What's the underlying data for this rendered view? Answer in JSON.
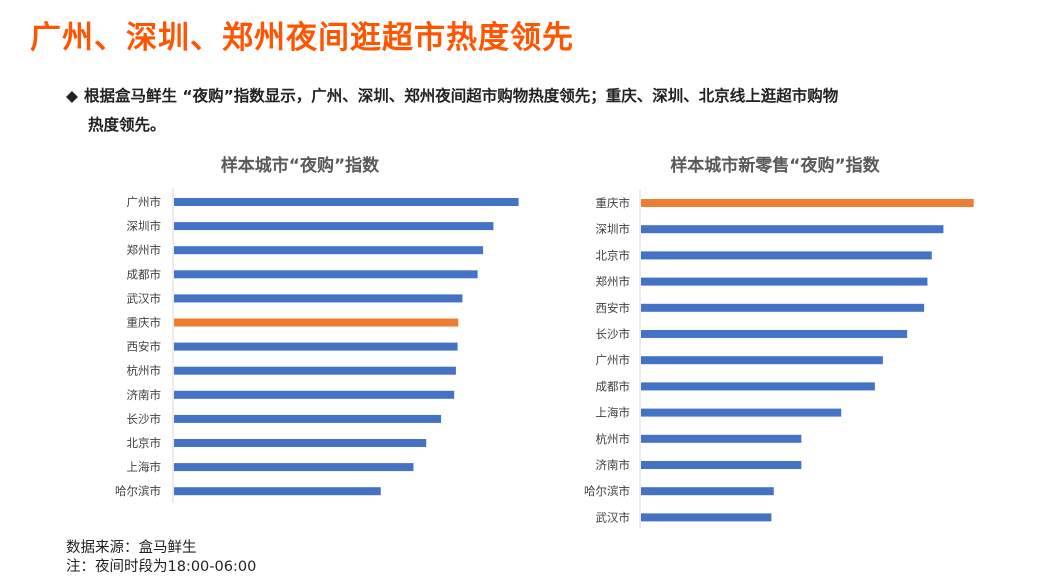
{
  "title": "广州、深圳、郑州夜间逛超市热度领先",
  "bullet": {
    "icon": "diamond-bullet-icon",
    "line1": "根据盒马鲜生 “夜购”指数显示，广州、深圳、郑州夜间超市购物热度领先；重庆、深圳、北京线上逛超市购物",
    "line2": "热度领先。"
  },
  "footer": {
    "source": "数据来源：盒马鲜生",
    "note": "注：夜间时段为18:00-06:00"
  },
  "colors": {
    "title": "#ff5500",
    "bar": "#4472c4",
    "highlight": "#ed7d31"
  },
  "chart_data": [
    {
      "type": "bar",
      "orientation": "horizontal",
      "title": "样本城市“夜购”指数",
      "categories": [
        "广州市",
        "深圳市",
        "郑州市",
        "成都市",
        "武汉市",
        "重庆市",
        "西安市",
        "杭州市",
        "济南市",
        "长沙市",
        "北京市",
        "上海市",
        "哈尔滨市"
      ],
      "values": [
        100,
        92.7,
        89.7,
        88.1,
        83.7,
        82.5,
        82.3,
        81.8,
        81.3,
        77.5,
        73.2,
        69.5,
        60.0
      ],
      "highlight": "重庆市",
      "grid": false
    },
    {
      "type": "bar",
      "orientation": "horizontal",
      "title": "样本城市新零售“夜购”指数",
      "categories": [
        "重庆市",
        "深圳市",
        "北京市",
        "郑州市",
        "西安市",
        "长沙市",
        "广州市",
        "成都市",
        "上海市",
        "杭州市",
        "济南市",
        "哈尔滨市",
        "武汉市"
      ],
      "values": [
        100,
        90.9,
        87.4,
        86.1,
        85.1,
        80.0,
        72.7,
        70.3,
        60.2,
        48.2,
        48.2,
        39.9,
        39.2
      ],
      "highlight": "重庆市",
      "grid": false
    }
  ]
}
